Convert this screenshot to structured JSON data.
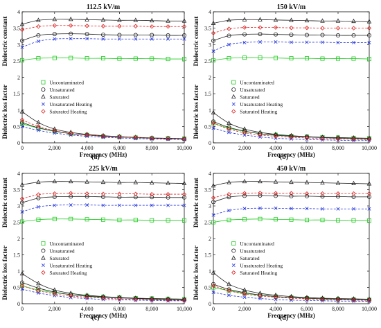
{
  "chart_data": [
    {
      "type": "scatter",
      "panel_label": "(a)",
      "title": "112.5 kV/m",
      "xlabel": "Frequency (MHz)",
      "ylabel_top": "Dielectric constant",
      "ylabel_bottom": "Dielectric loss factor",
      "xlim": [
        0,
        10000
      ],
      "ylim": [
        0,
        4
      ],
      "x_ticks": [
        0,
        2000,
        4000,
        6000,
        8000,
        10000
      ],
      "x_tick_labels": [
        "0",
        "2,000",
        "4,000",
        "6,000",
        "8,000",
        "10,000"
      ],
      "y_ticks": [
        0,
        0.5,
        1,
        1.5,
        2,
        2.5,
        3,
        3.5,
        4
      ],
      "y_tick_labels": [
        "0",
        "0.5",
        "1",
        "1.5",
        "2",
        "2.5",
        "3",
        "3.5",
        "4"
      ],
      "legend_position": "center-right",
      "x": [
        0,
        1000,
        2000,
        3000,
        4000,
        5000,
        6000,
        7000,
        8000,
        9000,
        10000
      ],
      "series": [
        {
          "name": "Uncontaminated",
          "marker": "square",
          "color": "#22cc22",
          "line_style": "solid",
          "constant": [
            2.52,
            2.58,
            2.59,
            2.59,
            2.58,
            2.58,
            2.57,
            2.57,
            2.57,
            2.56,
            2.56
          ],
          "loss": [
            0.58,
            0.45,
            0.35,
            0.28,
            0.24,
            0.2,
            0.18,
            0.16,
            0.14,
            0.14,
            0.13
          ]
        },
        {
          "name": "Unsaturated",
          "marker": "circle",
          "color": "#222222",
          "line_style": "solid",
          "constant": [
            3.12,
            3.28,
            3.32,
            3.33,
            3.32,
            3.3,
            3.29,
            3.29,
            3.29,
            3.28,
            3.28
          ],
          "loss": [
            0.62,
            0.46,
            0.36,
            0.28,
            0.24,
            0.2,
            0.18,
            0.16,
            0.14,
            0.13,
            0.12
          ]
        },
        {
          "name": "Saturated",
          "marker": "triangle",
          "color": "#222222",
          "line_style": "solid",
          "constant": [
            3.62,
            3.74,
            3.77,
            3.77,
            3.76,
            3.75,
            3.74,
            3.74,
            3.73,
            3.72,
            3.72
          ],
          "loss": [
            0.95,
            0.62,
            0.42,
            0.32,
            0.26,
            0.22,
            0.19,
            0.17,
            0.15,
            0.14,
            0.13
          ]
        },
        {
          "name": "Unsaturated Heating",
          "marker": "x",
          "color": "#2233dd",
          "line_style": "dashed",
          "constant": [
            2.92,
            3.1,
            3.17,
            3.18,
            3.18,
            3.17,
            3.17,
            3.17,
            3.17,
            3.17,
            3.17
          ],
          "loss": [
            0.5,
            0.38,
            0.3,
            0.24,
            0.2,
            0.17,
            0.15,
            0.13,
            0.12,
            0.11,
            0.1
          ]
        },
        {
          "name": "Saturated Heating",
          "marker": "diamond",
          "color": "#dd2222",
          "line_style": "dashed",
          "constant": [
            3.45,
            3.55,
            3.58,
            3.58,
            3.57,
            3.56,
            3.56,
            3.56,
            3.55,
            3.55,
            3.55
          ],
          "loss": [
            0.7,
            0.5,
            0.37,
            0.29,
            0.24,
            0.2,
            0.18,
            0.16,
            0.14,
            0.13,
            0.12
          ]
        }
      ]
    },
    {
      "type": "scatter",
      "panel_label": "(b)",
      "title": "150 kV/m",
      "xlabel": "Frequency (MHz)",
      "ylabel_top": "Dielectric constant",
      "ylabel_bottom": "Dielectric loss factor",
      "xlim": [
        0,
        10000
      ],
      "ylim": [
        0,
        4
      ],
      "x_ticks": [
        0,
        2000,
        4000,
        6000,
        8000,
        10000
      ],
      "x_tick_labels": [
        "0",
        "2,000",
        "4,000",
        "6,000",
        "8,000",
        "10,000"
      ],
      "y_ticks": [
        0,
        0.5,
        1,
        1.5,
        2,
        2.5,
        3,
        3.5,
        4
      ],
      "y_tick_labels": [
        "0",
        "0.5",
        "1",
        "1.5",
        "2",
        "2.5",
        "3",
        "3.5",
        "4"
      ],
      "legend_position": "center-right",
      "x": [
        0,
        1000,
        2000,
        3000,
        4000,
        5000,
        6000,
        7000,
        8000,
        9000,
        10000
      ],
      "series": [
        {
          "name": "Uncontaminated",
          "marker": "square",
          "color": "#22cc22",
          "line_style": "solid",
          "constant": [
            2.52,
            2.58,
            2.6,
            2.6,
            2.59,
            2.58,
            2.58,
            2.57,
            2.57,
            2.57,
            2.56
          ],
          "loss": [
            0.6,
            0.45,
            0.35,
            0.28,
            0.24,
            0.21,
            0.19,
            0.17,
            0.16,
            0.15,
            0.14
          ]
        },
        {
          "name": "Unsaturated",
          "marker": "circle",
          "color": "#222222",
          "line_style": "solid",
          "constant": [
            3.12,
            3.27,
            3.31,
            3.32,
            3.31,
            3.3,
            3.29,
            3.29,
            3.28,
            3.28,
            3.28
          ],
          "loss": [
            0.65,
            0.47,
            0.36,
            0.28,
            0.23,
            0.2,
            0.18,
            0.16,
            0.14,
            0.13,
            0.12
          ]
        },
        {
          "name": "Saturated",
          "marker": "triangle",
          "color": "#222222",
          "line_style": "solid",
          "constant": [
            3.65,
            3.74,
            3.76,
            3.76,
            3.75,
            3.74,
            3.73,
            3.72,
            3.72,
            3.71,
            3.7
          ],
          "loss": [
            0.92,
            0.6,
            0.42,
            0.32,
            0.26,
            0.22,
            0.19,
            0.17,
            0.16,
            0.15,
            0.14
          ]
        },
        {
          "name": "Unsaturated Heating",
          "marker": "x",
          "color": "#2233dd",
          "line_style": "dashed",
          "constant": [
            2.8,
            3.0,
            3.06,
            3.08,
            3.08,
            3.07,
            3.07,
            3.07,
            3.06,
            3.06,
            3.06
          ],
          "loss": [
            0.45,
            0.32,
            0.24,
            0.18,
            0.14,
            0.12,
            0.1,
            0.09,
            0.08,
            0.07,
            0.07
          ]
        },
        {
          "name": "Saturated Heating",
          "marker": "diamond",
          "color": "#dd2222",
          "line_style": "dashed",
          "constant": [
            3.35,
            3.48,
            3.52,
            3.52,
            3.52,
            3.51,
            3.51,
            3.5,
            3.5,
            3.5,
            3.5
          ],
          "loss": [
            0.6,
            0.42,
            0.31,
            0.24,
            0.2,
            0.17,
            0.15,
            0.13,
            0.12,
            0.11,
            0.1
          ]
        }
      ]
    },
    {
      "type": "scatter",
      "panel_label": "(c)",
      "title": "225 kV/m",
      "xlabel": "Frequency (MHz)",
      "ylabel_top": "Dielectric constant",
      "ylabel_bottom": "Dielectric loss factor",
      "xlim": [
        0,
        10000
      ],
      "ylim": [
        0,
        4
      ],
      "x_ticks": [
        0,
        2000,
        4000,
        6000,
        8000,
        10000
      ],
      "x_tick_labels": [
        "0",
        "2,000",
        "4,000",
        "6,000",
        "8,000",
        "10,000"
      ],
      "y_ticks": [
        0,
        0.5,
        1,
        1.5,
        2,
        2.5,
        3,
        3.5,
        4
      ],
      "y_tick_labels": [
        "0",
        "0.5",
        "1",
        "1.5",
        "2",
        "2.5",
        "3",
        "3.5",
        "4"
      ],
      "legend_position": "center-right",
      "x": [
        0,
        1000,
        2000,
        3000,
        4000,
        5000,
        6000,
        7000,
        8000,
        9000,
        10000
      ],
      "series": [
        {
          "name": "Uncontaminated",
          "marker": "square",
          "color": "#22cc22",
          "line_style": "solid",
          "constant": [
            2.52,
            2.58,
            2.6,
            2.6,
            2.59,
            2.58,
            2.57,
            2.57,
            2.56,
            2.56,
            2.56
          ],
          "loss": [
            0.55,
            0.42,
            0.34,
            0.28,
            0.24,
            0.21,
            0.19,
            0.17,
            0.16,
            0.15,
            0.14
          ]
        },
        {
          "name": "Unsaturated",
          "marker": "circle",
          "color": "#222222",
          "line_style": "solid",
          "constant": [
            3.1,
            3.24,
            3.28,
            3.29,
            3.29,
            3.28,
            3.27,
            3.27,
            3.27,
            3.26,
            3.26
          ],
          "loss": [
            0.65,
            0.48,
            0.36,
            0.28,
            0.23,
            0.2,
            0.18,
            0.16,
            0.14,
            0.13,
            0.12
          ]
        },
        {
          "name": "Saturated",
          "marker": "triangle",
          "color": "#222222",
          "line_style": "solid",
          "constant": [
            3.65,
            3.73,
            3.75,
            3.75,
            3.74,
            3.73,
            3.72,
            3.72,
            3.71,
            3.7,
            3.69
          ],
          "loss": [
            0.92,
            0.62,
            0.42,
            0.32,
            0.26,
            0.22,
            0.19,
            0.17,
            0.16,
            0.15,
            0.14
          ]
        },
        {
          "name": "Unsaturated Heating",
          "marker": "x",
          "color": "#2233dd",
          "line_style": "dashed",
          "constant": [
            2.82,
            2.97,
            3.02,
            3.03,
            3.03,
            3.02,
            3.02,
            3.02,
            3.02,
            3.02,
            3.02
          ],
          "loss": [
            0.45,
            0.33,
            0.25,
            0.19,
            0.16,
            0.13,
            0.12,
            0.11,
            0.1,
            0.09,
            0.09
          ]
        },
        {
          "name": "Saturated Heating",
          "marker": "diamond",
          "color": "#dd2222",
          "line_style": "dashed",
          "constant": [
            3.22,
            3.35,
            3.38,
            3.39,
            3.38,
            3.37,
            3.37,
            3.37,
            3.36,
            3.36,
            3.36
          ],
          "loss": [
            0.55,
            0.4,
            0.3,
            0.24,
            0.2,
            0.17,
            0.15,
            0.13,
            0.12,
            0.11,
            0.1
          ]
        }
      ]
    },
    {
      "type": "scatter",
      "panel_label": "(d)",
      "title": "450 kV/m",
      "xlabel": "Frequency (MHz)",
      "ylabel_top": "Dielectric constant",
      "ylabel_bottom": "Dielectric loss factor",
      "xlim": [
        0,
        10000
      ],
      "ylim": [
        0,
        4
      ],
      "x_ticks": [
        0,
        2000,
        4000,
        6000,
        8000,
        10000
      ],
      "x_tick_labels": [
        "0",
        "2,000",
        "4,000",
        "6,000",
        "8,000",
        "10,000"
      ],
      "y_ticks": [
        0,
        0.5,
        1,
        1.5,
        2,
        2.5,
        3,
        3.5,
        4
      ],
      "y_tick_labels": [
        "0",
        "0.5",
        "1",
        "1.5",
        "2",
        "2.5",
        "3",
        "3.5",
        "4"
      ],
      "legend_position": "center-right",
      "x": [
        0,
        1000,
        2000,
        3000,
        4000,
        5000,
        6000,
        7000,
        8000,
        9000,
        10000
      ],
      "series": [
        {
          "name": "Uncontaminated",
          "marker": "square",
          "color": "#22cc22",
          "line_style": "solid",
          "constant": [
            2.5,
            2.57,
            2.59,
            2.6,
            2.59,
            2.58,
            2.57,
            2.57,
            2.56,
            2.56,
            2.55
          ],
          "loss": [
            0.5,
            0.4,
            0.32,
            0.26,
            0.22,
            0.19,
            0.17,
            0.15,
            0.14,
            0.13,
            0.12
          ]
        },
        {
          "name": "Unsaturated",
          "marker": "circle",
          "color": "#222222",
          "line_style": "solid",
          "constant": [
            3.12,
            3.27,
            3.31,
            3.32,
            3.31,
            3.3,
            3.3,
            3.29,
            3.29,
            3.28,
            3.28
          ],
          "loss": [
            0.6,
            0.44,
            0.34,
            0.27,
            0.22,
            0.19,
            0.17,
            0.15,
            0.14,
            0.13,
            0.12
          ]
        },
        {
          "name": "Saturated",
          "marker": "triangle",
          "color": "#222222",
          "line_style": "solid",
          "constant": [
            3.62,
            3.72,
            3.75,
            3.75,
            3.74,
            3.73,
            3.72,
            3.71,
            3.7,
            3.69,
            3.68
          ],
          "loss": [
            0.95,
            0.6,
            0.42,
            0.32,
            0.26,
            0.22,
            0.19,
            0.17,
            0.16,
            0.15,
            0.14
          ]
        },
        {
          "name": "Unsaturated Heating",
          "marker": "x",
          "color": "#2233dd",
          "line_style": "dashed",
          "constant": [
            2.72,
            2.86,
            2.92,
            2.93,
            2.93,
            2.92,
            2.92,
            2.91,
            2.91,
            2.91,
            2.91
          ],
          "loss": [
            0.35,
            0.26,
            0.2,
            0.16,
            0.13,
            0.11,
            0.1,
            0.09,
            0.08,
            0.08,
            0.07
          ]
        },
        {
          "name": "Saturated Heating",
          "marker": "diamond",
          "color": "#dd2222",
          "line_style": "dashed",
          "constant": [
            3.25,
            3.36,
            3.39,
            3.4,
            3.39,
            3.39,
            3.38,
            3.38,
            3.38,
            3.38,
            3.38
          ],
          "loss": [
            0.55,
            0.4,
            0.3,
            0.24,
            0.2,
            0.17,
            0.15,
            0.13,
            0.12,
            0.11,
            0.1
          ]
        }
      ]
    }
  ]
}
